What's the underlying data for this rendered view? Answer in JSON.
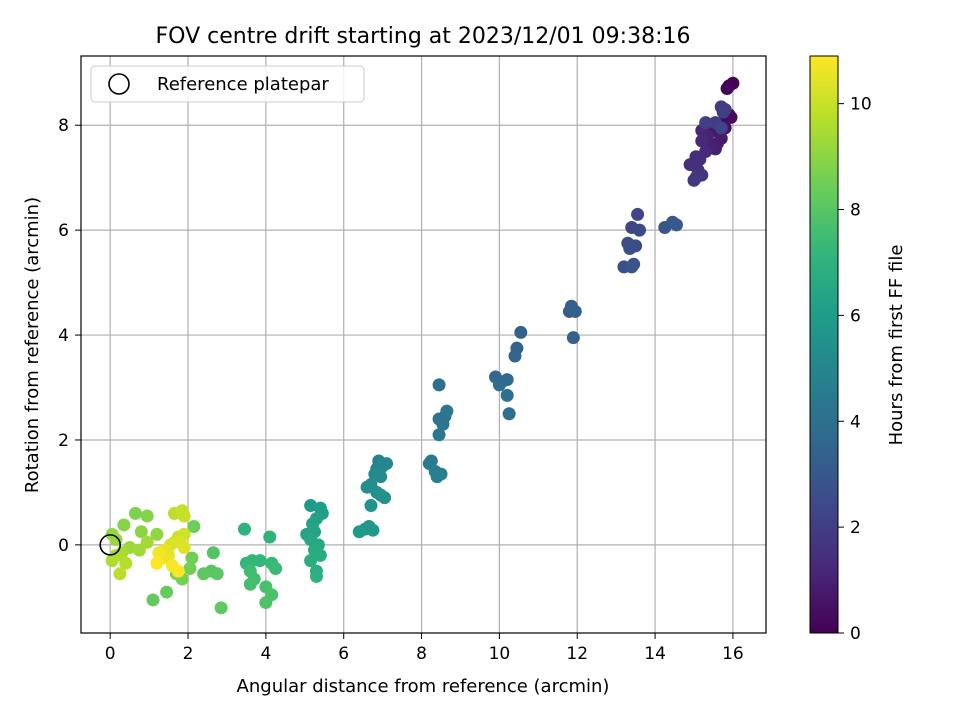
{
  "chart_data": {
    "type": "scatter",
    "title": "FOV centre drift starting at 2023/12/01 09:38:16",
    "xlabel": "Angular distance from reference (arcmin)",
    "ylabel": "Rotation from reference (arcmin)",
    "xlim": [
      -0.75,
      16.85
    ],
    "ylim": [
      -1.68,
      9.32
    ],
    "xticks": [
      0,
      2,
      4,
      6,
      8,
      10,
      12,
      14,
      16
    ],
    "yticks": [
      0,
      2,
      4,
      6,
      8
    ],
    "grid": true,
    "legend": {
      "position": "upper-left",
      "entries": [
        "Reference platepar"
      ]
    },
    "reference_point": {
      "x": 0,
      "y": 0
    },
    "colorbar": {
      "label": "Hours from first FF file",
      "range": [
        0,
        10.9
      ],
      "ticks": [
        0,
        2,
        4,
        6,
        8,
        10
      ],
      "colormap": "viridis",
      "colors": [
        "#440154",
        "#482878",
        "#3e4989",
        "#31688e",
        "#26828e",
        "#1f9e89",
        "#35b779",
        "#6ece58",
        "#b5de2b",
        "#fde725"
      ]
    },
    "series": [
      {
        "name": "drift",
        "points": [
          [
            15.9,
            8.75
          ],
          [
            16.0,
            8.8
          ],
          [
            15.85,
            8.7
          ],
          [
            15.9,
            8.2
          ],
          [
            15.75,
            8.05
          ],
          [
            15.95,
            8.15
          ],
          [
            15.6,
            8.0
          ],
          [
            15.8,
            7.95
          ],
          [
            15.65,
            7.85
          ],
          [
            15.5,
            7.9
          ],
          [
            15.4,
            7.95
          ],
          [
            15.7,
            7.75
          ],
          [
            15.6,
            7.65
          ],
          [
            15.55,
            7.55
          ],
          [
            15.45,
            7.6
          ],
          [
            15.35,
            7.8
          ],
          [
            15.2,
            7.9
          ],
          [
            15.2,
            7.7
          ],
          [
            15.3,
            7.5
          ],
          [
            15.15,
            7.35
          ],
          [
            15.05,
            7.4
          ],
          [
            14.9,
            7.25
          ],
          [
            15.1,
            7.15
          ],
          [
            15.2,
            7.05
          ],
          [
            15.05,
            7.0
          ],
          [
            15.0,
            6.95
          ],
          [
            15.7,
            8.35
          ],
          [
            15.8,
            8.3
          ],
          [
            15.55,
            8.05
          ],
          [
            15.75,
            8.25
          ],
          [
            15.3,
            8.05
          ],
          [
            15.7,
            7.95
          ],
          [
            13.55,
            6.3
          ],
          [
            13.4,
            6.05
          ],
          [
            13.6,
            6.0
          ],
          [
            13.3,
            5.75
          ],
          [
            13.5,
            5.7
          ],
          [
            13.35,
            5.65
          ],
          [
            13.2,
            5.3
          ],
          [
            13.45,
            5.35
          ],
          [
            13.4,
            5.3
          ],
          [
            14.25,
            6.05
          ],
          [
            14.45,
            6.15
          ],
          [
            14.55,
            6.1
          ],
          [
            11.8,
            4.45
          ],
          [
            11.85,
            4.55
          ],
          [
            11.95,
            4.45
          ],
          [
            11.9,
            3.95
          ],
          [
            10.55,
            4.05
          ],
          [
            10.45,
            3.75
          ],
          [
            10.4,
            3.6
          ],
          [
            9.9,
            3.2
          ],
          [
            10.05,
            3.1
          ],
          [
            10.2,
            3.15
          ],
          [
            10.0,
            3.05
          ],
          [
            10.2,
            2.85
          ],
          [
            10.25,
            2.5
          ],
          [
            8.45,
            3.05
          ],
          [
            8.45,
            2.4
          ],
          [
            8.6,
            2.45
          ],
          [
            8.55,
            2.3
          ],
          [
            8.45,
            2.1
          ],
          [
            8.65,
            2.55
          ],
          [
            8.25,
            1.6
          ],
          [
            8.2,
            1.55
          ],
          [
            8.35,
            1.4
          ],
          [
            8.5,
            1.35
          ],
          [
            8.4,
            1.3
          ],
          [
            6.9,
            1.6
          ],
          [
            7.1,
            1.55
          ],
          [
            6.85,
            1.45
          ],
          [
            7.0,
            1.5
          ],
          [
            6.8,
            1.35
          ],
          [
            6.95,
            1.3
          ],
          [
            6.7,
            1.15
          ],
          [
            6.6,
            1.1
          ],
          [
            6.85,
            1.0
          ],
          [
            7.05,
            0.9
          ],
          [
            6.95,
            0.95
          ],
          [
            6.7,
            0.75
          ],
          [
            6.65,
            0.35
          ],
          [
            6.55,
            0.3
          ],
          [
            6.75,
            0.28
          ],
          [
            6.4,
            0.25
          ],
          [
            5.15,
            0.75
          ],
          [
            5.4,
            0.7
          ],
          [
            5.45,
            0.6
          ],
          [
            5.3,
            0.5
          ],
          [
            5.2,
            0.4
          ],
          [
            5.25,
            0.25
          ],
          [
            5.05,
            0.2
          ],
          [
            5.15,
            0.1
          ],
          [
            5.35,
            0.0
          ],
          [
            5.25,
            -0.1
          ],
          [
            5.4,
            -0.2
          ],
          [
            5.15,
            -0.3
          ],
          [
            5.3,
            -0.5
          ],
          [
            5.3,
            -0.6
          ],
          [
            3.45,
            0.3
          ],
          [
            4.1,
            0.15
          ],
          [
            3.5,
            -0.35
          ],
          [
            3.65,
            -0.3
          ],
          [
            3.85,
            -0.3
          ],
          [
            4.15,
            -0.35
          ],
          [
            4.25,
            -0.45
          ],
          [
            3.6,
            -0.5
          ],
          [
            3.7,
            -0.65
          ],
          [
            3.6,
            -0.75
          ],
          [
            4.0,
            -0.8
          ],
          [
            4.15,
            -0.95
          ],
          [
            4.0,
            -1.1
          ],
          [
            2.65,
            -0.15
          ],
          [
            2.6,
            -0.5
          ],
          [
            2.75,
            -0.55
          ],
          [
            2.4,
            -0.55
          ],
          [
            2.85,
            -1.2
          ],
          [
            1.1,
            -1.05
          ],
          [
            1.45,
            -0.9
          ],
          [
            2.15,
            0.35
          ],
          [
            2.1,
            -0.25
          ],
          [
            2.05,
            -0.45
          ],
          [
            1.85,
            -0.65
          ],
          [
            1.7,
            -0.55
          ],
          [
            0.65,
            0.6
          ],
          [
            0.95,
            0.55
          ],
          [
            0.35,
            0.38
          ],
          [
            0.8,
            0.25
          ],
          [
            1.2,
            0.2
          ],
          [
            0.05,
            0.2
          ],
          [
            0.15,
            0.1
          ],
          [
            0.5,
            -0.05
          ],
          [
            0.75,
            -0.1
          ],
          [
            0.95,
            0.05
          ],
          [
            0.3,
            -0.15
          ],
          [
            0.15,
            -0.2
          ],
          [
            0.05,
            -0.3
          ],
          [
            0.4,
            -0.35
          ],
          [
            0.25,
            -0.55
          ],
          [
            1.65,
            0.6
          ],
          [
            1.85,
            0.65
          ],
          [
            1.9,
            0.55
          ],
          [
            1.75,
            0.15
          ],
          [
            1.9,
            0.2
          ],
          [
            1.65,
            0.05
          ],
          [
            1.55,
            0.0
          ],
          [
            1.8,
            0.05
          ],
          [
            1.9,
            -0.05
          ],
          [
            1.4,
            -0.1
          ],
          [
            1.5,
            -0.2
          ],
          [
            1.35,
            -0.25
          ],
          [
            1.25,
            -0.15
          ],
          [
            1.6,
            -0.4
          ],
          [
            1.75,
            -0.5
          ],
          [
            1.2,
            -0.35
          ]
        ]
      }
    ]
  }
}
